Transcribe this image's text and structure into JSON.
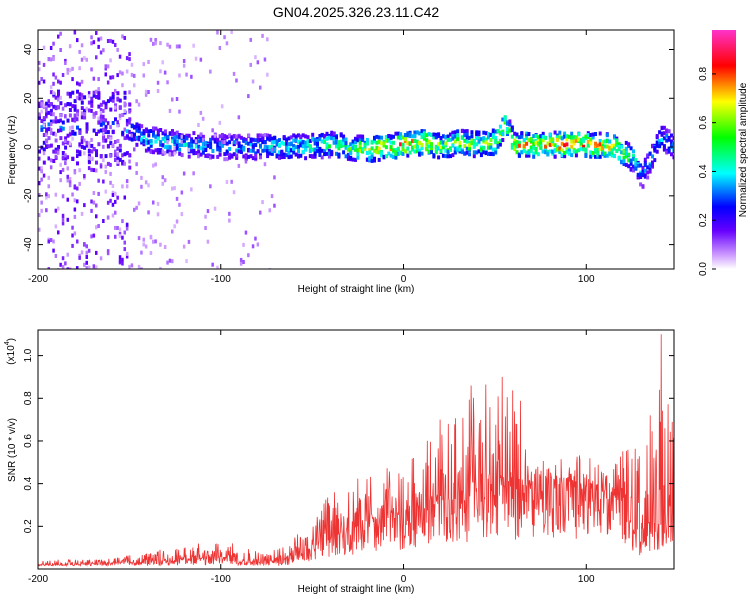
{
  "figure_title": "GN04.2025.326.23.11.C42",
  "chart_data": [
    {
      "type": "heatmap",
      "xlabel": "Height of straight line (km)",
      "ylabel": "Frequency (Hz)",
      "xlim": [
        -200,
        148
      ],
      "ylim": [
        -50,
        48
      ],
      "x_ticks": [
        "-200",
        "-100",
        "0",
        "100"
      ],
      "x_tick_values": [
        -200,
        -100,
        0,
        100
      ],
      "y_ticks": [
        "-40",
        "-20",
        "0",
        "20",
        "40"
      ],
      "y_tick_values": [
        -40,
        -20,
        0,
        20,
        40
      ],
      "colorbar": {
        "label": "Normalized spectral amplitude",
        "range": [
          0.0,
          0.98
        ],
        "ticks": [
          "0.0",
          "0.2",
          "0.4",
          "0.6",
          "0.8"
        ],
        "tick_values": [
          0.0,
          0.2,
          0.4,
          0.6,
          0.8
        ],
        "colors": [
          "#ffffff",
          "#cc99ff",
          "#6600ff",
          "#0000ff",
          "#00ffff",
          "#00ff00",
          "#ffff00",
          "#ff0000",
          "#ff33cc"
        ]
      },
      "ridge": {
        "x": [
          -155,
          -140,
          -120,
          -100,
          -80,
          -60,
          -40,
          -20,
          0,
          10,
          20,
          30,
          40,
          50,
          55,
          60,
          80,
          100,
          115,
          125,
          130,
          140,
          148
        ],
        "frequency": [
          8,
          3,
          1,
          0,
          0,
          0,
          1,
          -1,
          1,
          2,
          0,
          2,
          1,
          2,
          10,
          1,
          1,
          1,
          0,
          -5,
          -12,
          4,
          0
        ],
        "peak_amplitude": [
          0.35,
          0.45,
          0.45,
          0.4,
          0.42,
          0.5,
          0.55,
          0.75,
          0.92,
          0.9,
          0.7,
          0.7,
          0.68,
          0.72,
          0.65,
          0.85,
          0.88,
          0.9,
          0.8,
          0.55,
          0.4,
          0.45,
          0.4
        ]
      }
    },
    {
      "type": "line",
      "xlabel": "Height of straight line (km)",
      "ylabel": "SNR (10 * v/v)",
      "y_scale_note": "(x10",
      "y_scale_exp": "4",
      "y_scale_close": ")",
      "xlim": [
        -200,
        148
      ],
      "ylim": [
        0,
        1.12
      ],
      "x_ticks": [
        "-200",
        "-100",
        "0",
        "100"
      ],
      "x_tick_values": [
        -200,
        -100,
        0,
        100
      ],
      "y_ticks": [
        "0.2",
        "0.4",
        "0.6",
        "0.8",
        "1.0"
      ],
      "y_tick_values": [
        0.2,
        0.4,
        0.6,
        0.8,
        1.0
      ],
      "series": [
        {
          "color": "#ee3333",
          "x": [
            -200,
            -180,
            -160,
            -140,
            -120,
            -100,
            -90,
            -80,
            -70,
            -60,
            -50,
            -40,
            -30,
            -20,
            -10,
            0,
            10,
            20,
            30,
            40,
            50,
            60,
            65,
            70,
            80,
            90,
            100,
            110,
            115,
            120,
            125,
            130,
            135,
            140,
            148
          ],
          "baseline": [
            0.02,
            0.02,
            0.03,
            0.03,
            0.05,
            0.06,
            0.04,
            0.03,
            0.04,
            0.06,
            0.1,
            0.14,
            0.18,
            0.22,
            0.24,
            0.26,
            0.3,
            0.34,
            0.36,
            0.36,
            0.38,
            0.38,
            0.36,
            0.42,
            0.42,
            0.4,
            0.38,
            0.36,
            0.34,
            0.32,
            0.22,
            0.18,
            0.22,
            0.26,
            0.28
          ],
          "upper_envelope": [
            0.04,
            0.05,
            0.05,
            0.08,
            0.11,
            0.14,
            0.12,
            0.08,
            0.1,
            0.15,
            0.23,
            0.36,
            0.4,
            0.46,
            0.5,
            0.5,
            0.6,
            0.62,
            0.78,
            0.86,
            0.92,
            0.86,
            0.78,
            0.55,
            0.52,
            0.52,
            0.54,
            0.5,
            0.5,
            0.6,
            0.6,
            0.62,
            0.72,
            0.86,
            0.75
          ],
          "peaks": [
            {
              "x": 20,
              "y": 0.7
            },
            {
              "x": 37,
              "y": 0.86
            },
            {
              "x": 54,
              "y": 0.9
            },
            {
              "x": 140,
              "y": 0.84
            },
            {
              "x": 141,
              "y": 1.1
            },
            {
              "x": 135,
              "y": 0.72
            },
            {
              "x": 62,
              "y": 0.68
            }
          ]
        }
      ]
    }
  ]
}
